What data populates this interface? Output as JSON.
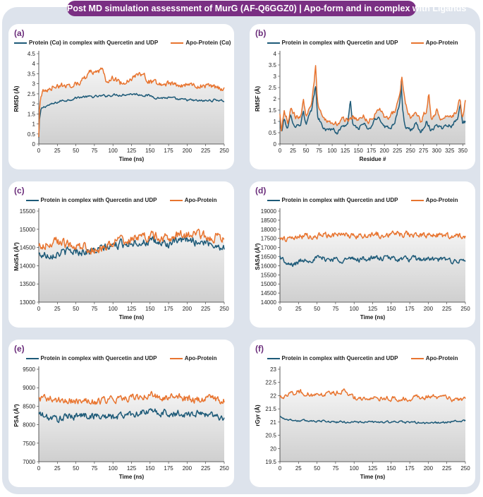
{
  "header": {
    "title": "Post MD simulation assessment of MurG (AF-Q6GGZ0) | Apo-form and in complex with Ligands"
  },
  "colors": {
    "complex": "#1d5a78",
    "apo": "#e8742f",
    "banner": "#7a2f83",
    "label": "#6a2c7a"
  },
  "chart_data": [
    {
      "id": "a",
      "label": "(a)",
      "type": "line",
      "xlabel": "Time (ns)",
      "ylabel": "RMSD (Å)",
      "xlim": [
        0,
        250
      ],
      "ylim": [
        0,
        4.5
      ],
      "xticks": [
        0,
        25,
        50,
        75,
        100,
        125,
        150,
        175,
        200,
        225,
        250
      ],
      "yticks": [
        "0",
        "0.5",
        "1",
        "1.5",
        "2",
        "2.5",
        "3",
        "3.5",
        "4",
        "4.5"
      ],
      "grid": false,
      "legend_position": "top",
      "series": [
        {
          "name": "Protein (Cα) in complex with Quercetin and UDP",
          "color_key": "complex",
          "x": [
            0,
            1,
            3,
            5,
            10,
            20,
            30,
            40,
            50,
            60,
            75,
            90,
            100,
            110,
            125,
            140,
            150,
            160,
            175,
            190,
            200,
            210,
            225,
            240,
            250
          ],
          "values": [
            0.3,
            1.2,
            1.7,
            1.8,
            1.9,
            2.0,
            2.15,
            2.2,
            2.3,
            2.35,
            2.35,
            2.4,
            2.45,
            2.45,
            2.5,
            2.45,
            2.4,
            2.3,
            2.3,
            2.2,
            2.2,
            2.15,
            2.15,
            2.2,
            2.15
          ],
          "noise": 0.08
        },
        {
          "name": "Apo-Protein (Cα)",
          "color_key": "apo",
          "x": [
            0,
            1,
            3,
            5,
            10,
            20,
            30,
            40,
            50,
            60,
            70,
            80,
            85,
            90,
            100,
            110,
            125,
            140,
            150,
            160,
            175,
            190,
            200,
            210,
            225,
            240,
            250
          ],
          "values": [
            0.3,
            1.8,
            2.4,
            2.6,
            2.6,
            2.9,
            2.9,
            2.9,
            3.0,
            3.2,
            3.6,
            3.5,
            3.8,
            3.2,
            3.3,
            3.0,
            3.3,
            3.5,
            3.1,
            3.0,
            3.0,
            2.9,
            3.0,
            2.9,
            2.9,
            2.8,
            2.7
          ],
          "noise": 0.18
        }
      ]
    },
    {
      "id": "b",
      "label": "(b)",
      "type": "line",
      "xlabel": "Residue #",
      "ylabel": "RMSF (Å)",
      "xlim": [
        0,
        355
      ],
      "ylim": [
        0,
        4
      ],
      "xticks": [
        0,
        25,
        50,
        75,
        100,
        125,
        150,
        175,
        200,
        225,
        250,
        275,
        300,
        325,
        350
      ],
      "yticks": [
        "0",
        "0.5",
        "1",
        "1.5",
        "2",
        "2.5",
        "3",
        "3.5",
        "4"
      ],
      "grid": false,
      "legend_position": "top",
      "series": [
        {
          "name": "Protein in complex with Quercetin and UDP",
          "color_key": "complex",
          "x": [
            0,
            3,
            8,
            15,
            20,
            30,
            40,
            45,
            50,
            55,
            60,
            65,
            68,
            72,
            80,
            90,
            100,
            110,
            120,
            130,
            135,
            140,
            150,
            160,
            170,
            180,
            190,
            200,
            210,
            220,
            230,
            232,
            235,
            240,
            250,
            260,
            270,
            280,
            290,
            300,
            310,
            320,
            330,
            340,
            345,
            350,
            355
          ],
          "values": [
            1.0,
            0.5,
            1.1,
            0.7,
            1.2,
            0.8,
            0.9,
            1.5,
            0.8,
            1.2,
            1.4,
            2.1,
            2.6,
            1.3,
            0.8,
            0.6,
            0.7,
            0.5,
            0.8,
            0.9,
            1.9,
            0.8,
            0.7,
            0.9,
            0.6,
            1.0,
            1.2,
            0.8,
            0.7,
            1.0,
            1.9,
            2.8,
            1.4,
            0.7,
            0.6,
            0.9,
            0.5,
            1.0,
            0.6,
            0.9,
            0.7,
            0.9,
            0.8,
            1.2,
            1.8,
            0.9,
            1.0
          ],
          "noise": 0.12
        },
        {
          "name": "Apo-Protein",
          "color_key": "apo",
          "x": [
            0,
            3,
            8,
            15,
            20,
            30,
            40,
            45,
            50,
            55,
            60,
            65,
            68,
            72,
            80,
            90,
            100,
            110,
            120,
            130,
            140,
            150,
            160,
            170,
            180,
            190,
            200,
            210,
            220,
            230,
            233,
            240,
            250,
            260,
            270,
            280,
            285,
            290,
            300,
            310,
            320,
            330,
            340,
            345,
            350,
            355
          ],
          "values": [
            1.3,
            0.6,
            1.4,
            1.0,
            1.5,
            1.2,
            1.3,
            2.0,
            1.2,
            1.5,
            1.8,
            2.6,
            3.5,
            1.8,
            1.2,
            1.0,
            1.0,
            0.9,
            1.1,
            1.1,
            1.2,
            1.0,
            1.2,
            1.0,
            1.3,
            1.6,
            1.2,
            1.2,
            1.5,
            2.1,
            3.0,
            1.8,
            1.1,
            1.4,
            1.0,
            1.5,
            2.3,
            1.0,
            1.5,
            1.1,
            1.3,
            1.2,
            1.6,
            2.0,
            1.1,
            2.0
          ],
          "noise": 0.15
        }
      ]
    },
    {
      "id": "c",
      "label": "(c)",
      "type": "line",
      "xlabel": "Time (ns)",
      "ylabel": "MolSA (Å²)",
      "xlim": [
        0,
        250
      ],
      "ylim": [
        13000,
        15500
      ],
      "xticks": [
        0,
        25,
        50,
        75,
        100,
        125,
        150,
        175,
        200,
        225,
        250
      ],
      "yticks": [
        "13000",
        "13500",
        "14000",
        "14500",
        "15000",
        "15500"
      ],
      "grid": false,
      "legend_position": "top",
      "series": [
        {
          "name": "Protein in complex with Quercetin and UDP",
          "color_key": "complex",
          "x": [
            0,
            10,
            25,
            50,
            75,
            100,
            125,
            150,
            175,
            200,
            225,
            250
          ],
          "values": [
            14300,
            14300,
            14350,
            14400,
            14400,
            14550,
            14650,
            14650,
            14600,
            14700,
            14650,
            14500
          ],
          "noise": 150
        },
        {
          "name": "Apo-Protein",
          "color_key": "apo",
          "x": [
            0,
            10,
            25,
            50,
            75,
            100,
            125,
            150,
            175,
            200,
            225,
            250
          ],
          "values": [
            14500,
            14600,
            14650,
            14550,
            14450,
            14650,
            14750,
            14800,
            14800,
            14850,
            14800,
            14750
          ],
          "noise": 170
        }
      ]
    },
    {
      "id": "d",
      "label": "(d)",
      "type": "line",
      "xlabel": "Time (ns)",
      "ylabel": "SASA (Å²)",
      "xlim": [
        0,
        250
      ],
      "ylim": [
        14000,
        19000
      ],
      "xticks": [
        0,
        25,
        50,
        75,
        100,
        125,
        150,
        175,
        200,
        225,
        250
      ],
      "yticks": [
        "14000",
        "14500",
        "15000",
        "15500",
        "16000",
        "16500",
        "17000",
        "17500",
        "18000",
        "18500",
        "19000"
      ],
      "grid": false,
      "legend_position": "top",
      "series": [
        {
          "name": "Protein in complex with Quercetin and UDP",
          "color_key": "complex",
          "x": [
            0,
            5,
            10,
            20,
            30,
            50,
            75,
            100,
            125,
            150,
            175,
            200,
            225,
            250
          ],
          "values": [
            16500,
            16300,
            16000,
            16100,
            16300,
            16400,
            16350,
            16350,
            16400,
            16400,
            16350,
            16350,
            16300,
            16250
          ],
          "noise": 200
        },
        {
          "name": "Apo-Protein",
          "color_key": "apo",
          "x": [
            0,
            10,
            25,
            50,
            75,
            100,
            125,
            150,
            175,
            200,
            225,
            250
          ],
          "values": [
            17500,
            17500,
            17600,
            17650,
            17700,
            17650,
            17700,
            17700,
            17750,
            17700,
            17650,
            17600
          ],
          "noise": 220
        }
      ]
    },
    {
      "id": "e",
      "label": "(e)",
      "type": "line",
      "xlabel": "Time (ns)",
      "ylabel": "PSA (Å²)",
      "xlim": [
        0,
        250
      ],
      "ylim": [
        7000,
        9500
      ],
      "xticks": [
        0,
        25,
        50,
        75,
        100,
        125,
        150,
        175,
        200,
        225,
        250
      ],
      "yticks": [
        "7000",
        "7500",
        "8000",
        "8500",
        "9000",
        "9500"
      ],
      "grid": false,
      "legend_position": "top",
      "series": [
        {
          "name": "Protein in complex with Quercetin and UDP",
          "color_key": "complex",
          "x": [
            0,
            10,
            25,
            50,
            75,
            100,
            125,
            150,
            175,
            200,
            225,
            250
          ],
          "values": [
            8300,
            8200,
            8150,
            8250,
            8250,
            8200,
            8300,
            8350,
            8300,
            8300,
            8300,
            8200
          ],
          "noise": 130
        },
        {
          "name": "Apo-Protein",
          "color_key": "apo",
          "x": [
            0,
            10,
            25,
            50,
            75,
            100,
            125,
            150,
            175,
            200,
            225,
            250
          ],
          "values": [
            8700,
            8700,
            8650,
            8650,
            8600,
            8700,
            8750,
            8800,
            8750,
            8700,
            8700,
            8650
          ],
          "noise": 130
        }
      ]
    },
    {
      "id": "f",
      "label": "(f)",
      "type": "line",
      "xlabel": "Time (ns)",
      "ylabel": "rGyr (Å)",
      "xlim": [
        0,
        250
      ],
      "ylim": [
        19.5,
        23
      ],
      "xticks": [
        0,
        25,
        50,
        75,
        100,
        125,
        150,
        175,
        200,
        225,
        250
      ],
      "yticks": [
        "19.5",
        "20",
        "20.5",
        "21",
        "21.5",
        "22",
        "22.5",
        "23"
      ],
      "grid": false,
      "legend_position": "top",
      "series": [
        {
          "name": "Protein in complex with Quercetin and UDP",
          "color_key": "complex",
          "x": [
            0,
            10,
            25,
            50,
            75,
            100,
            125,
            150,
            175,
            200,
            225,
            250
          ],
          "values": [
            21.2,
            21.1,
            21.05,
            21.05,
            21.0,
            21.0,
            21.0,
            21.0,
            21.0,
            20.95,
            21.0,
            21.05
          ],
          "noise": 0.05
        },
        {
          "name": "Apo-Protein",
          "color_key": "apo",
          "x": [
            0,
            10,
            25,
            50,
            75,
            85,
            100,
            125,
            150,
            175,
            200,
            225,
            240,
            250
          ],
          "values": [
            21.9,
            22.0,
            22.15,
            22.0,
            22.1,
            22.2,
            21.9,
            21.9,
            21.9,
            21.9,
            21.95,
            21.9,
            21.8,
            21.85
          ],
          "noise": 0.12
        }
      ]
    }
  ]
}
